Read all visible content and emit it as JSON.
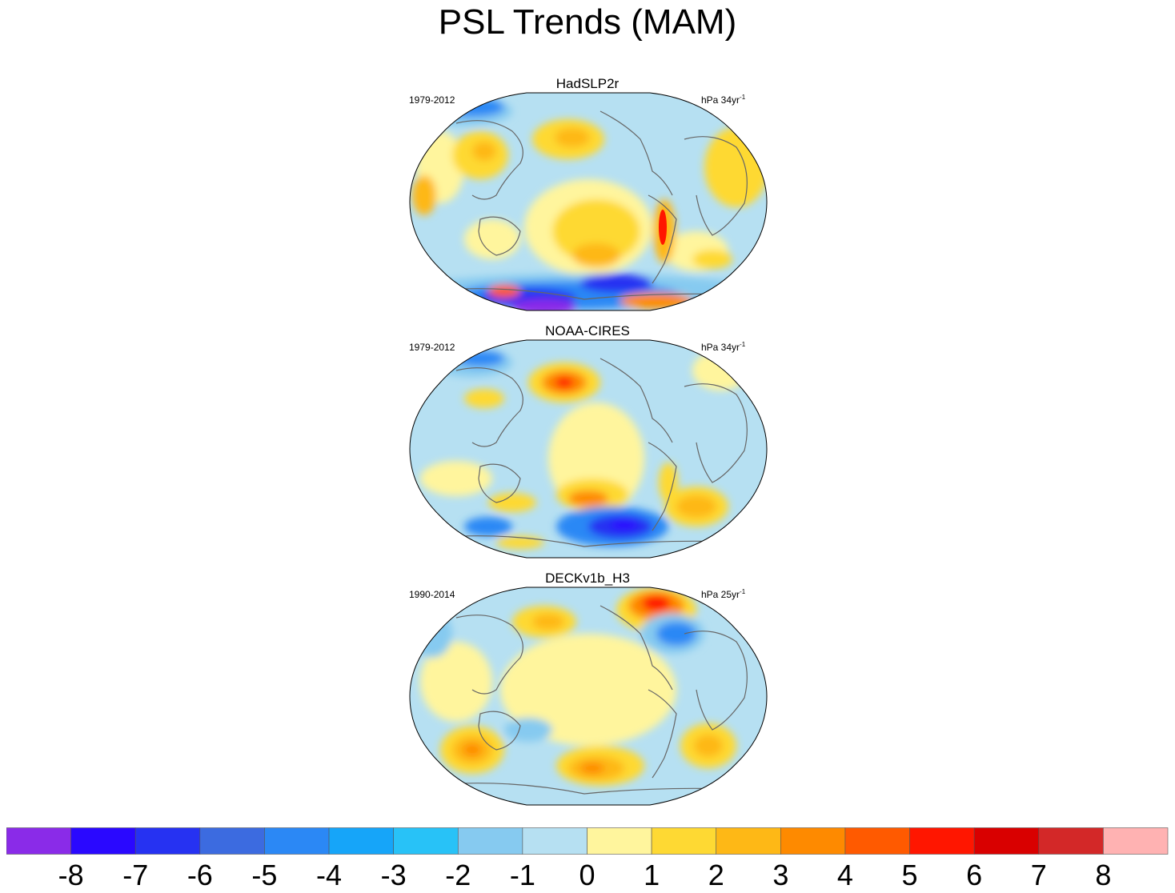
{
  "title": "PSL Trends (MAM)",
  "panels": [
    {
      "name": "HadSLP2r",
      "period": "1979-2012",
      "units_base": "hPa 34yr",
      "units_exp": "-1"
    },
    {
      "name": "NOAA-CIRES",
      "period": "1979-2012",
      "units_base": "hPa 34yr",
      "units_exp": "-1"
    },
    {
      "name": "DECKv1b_H3",
      "period": "1990-2014",
      "units_base": "hPa 25yr",
      "units_exp": "-1"
    }
  ],
  "colorbar": {
    "colors": [
      "#8a2be8",
      "#2a08ff",
      "#2632f2",
      "#3c6be0",
      "#2b88f5",
      "#16a5f9",
      "#28c2f7",
      "#86caf0",
      "#b6e0f2",
      "#fff59d",
      "#fed933",
      "#feb816",
      "#fe8a00",
      "#ff5a00",
      "#ff1600",
      "#d90000",
      "#d32828",
      "#ffb2b2"
    ],
    "ticks": [
      "-8",
      "-7",
      "-6",
      "-5",
      "-4",
      "-3",
      "-2",
      "-1",
      "0",
      "1",
      "2",
      "3",
      "4",
      "5",
      "6",
      "7",
      "8"
    ]
  }
}
